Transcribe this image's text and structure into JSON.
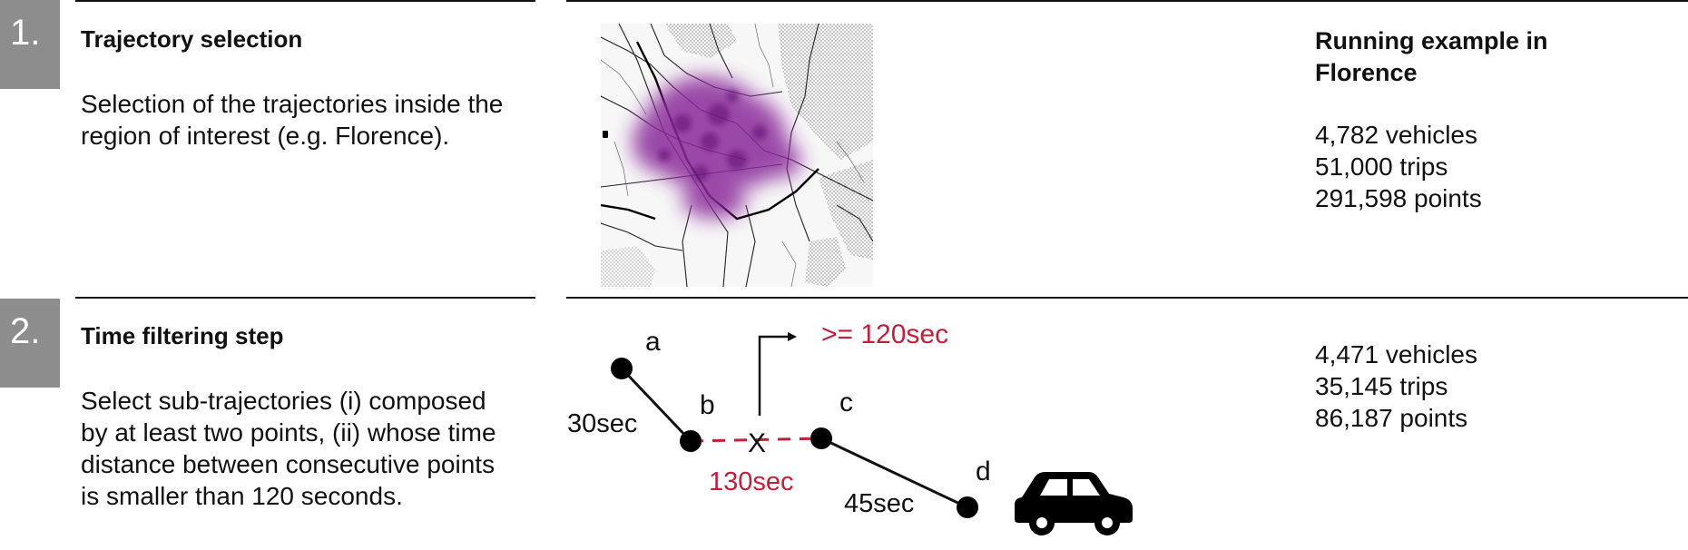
{
  "steps": [
    {
      "number": "1.",
      "title": "Trajectory selection",
      "description": "Selection of the trajectories inside the region of interest (e.g. Florence).",
      "stats": [
        "4,782 vehicles",
        "51,000 trips",
        "291,598 points"
      ]
    },
    {
      "number": "2.",
      "title": "Time filtering step",
      "description": "Select sub-trajectories (i) composed by at least two points, (ii) whose time distance between consecutive points is smaller than 120 seconds.",
      "stats": [
        "4,471 vehicles",
        "35,145 trips",
        "86,187 points"
      ]
    }
  ],
  "right_heading": "Running example in Florence",
  "diagram": {
    "points": [
      "a",
      "b",
      "c",
      "d"
    ],
    "threshold_label": ">= 120sec",
    "gap_ab": "30sec",
    "gap_bc": "130sec",
    "gap_cd": "45sec",
    "cut_mark": "X",
    "colors": {
      "highlight": "#c0203a",
      "line": "#111111"
    },
    "icons": [
      "car-icon"
    ]
  },
  "map": {
    "icons": [
      "florence-density-map"
    ]
  },
  "colors": {
    "number_box": "#8d8d8d"
  }
}
